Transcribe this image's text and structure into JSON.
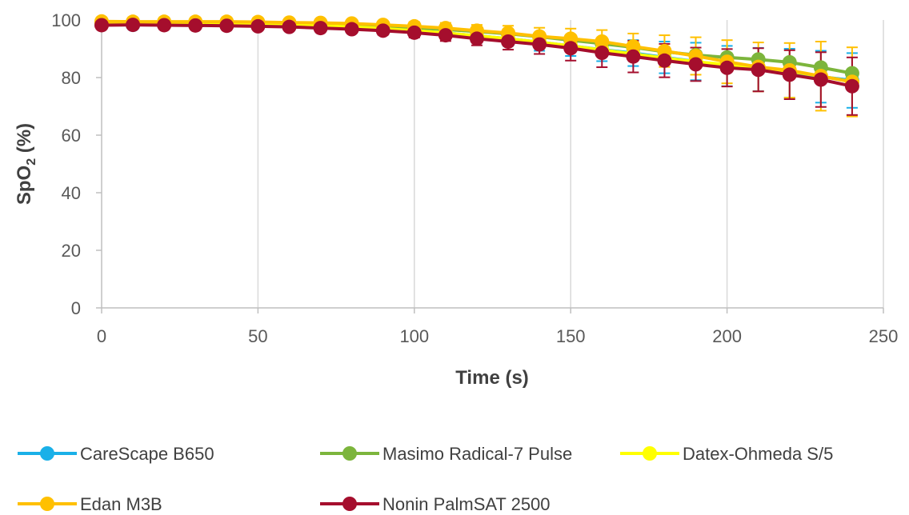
{
  "chart_data": {
    "type": "line",
    "xlabel": "Time (s)",
    "ylabel_main": "SpO",
    "ylabel_sub": "2",
    "ylabel_tail": " (%)",
    "xlim": [
      0,
      250
    ],
    "ylim": [
      0,
      100
    ],
    "x_ticks": [
      0,
      50,
      100,
      150,
      200,
      250
    ],
    "y_ticks": [
      0,
      20,
      40,
      60,
      80,
      100
    ],
    "grid": "vertical",
    "legend_position": "bottom",
    "x": [
      0,
      10,
      20,
      30,
      40,
      50,
      60,
      70,
      80,
      90,
      100,
      110,
      120,
      130,
      140,
      150,
      160,
      170,
      180,
      190,
      200,
      210,
      220,
      230,
      240
    ],
    "series": [
      {
        "name": "CareScape B650",
        "color": "#1ab0e8",
        "values": [
          98.5,
          98.3,
          98.5,
          98.6,
          98.6,
          98.4,
          98.2,
          98.0,
          97.5,
          97.0,
          96.3,
          95.5,
          94.5,
          93.5,
          92.3,
          91.0,
          89.7,
          88.5,
          87.0,
          85.6,
          84.0,
          82.8,
          81.5,
          80.3,
          79.0
        ],
        "error": [
          0.5,
          0.5,
          0.5,
          0.5,
          0.5,
          0.6,
          0.6,
          0.8,
          1.0,
          1.2,
          1.5,
          1.8,
          2.1,
          2.5,
          3.0,
          3.5,
          4.0,
          4.5,
          5.5,
          6.5,
          7.0,
          7.5,
          8.5,
          9.0,
          9.5
        ]
      },
      {
        "name": "Masimo Radical-7 Pulse",
        "color": "#7cb53c",
        "values": [
          99.0,
          99.0,
          99.0,
          99.0,
          99.0,
          98.8,
          98.7,
          98.5,
          98.2,
          97.8,
          97.3,
          96.7,
          96.0,
          95.2,
          94.2,
          93.0,
          91.8,
          90.5,
          89.0,
          87.8,
          87.0,
          86.3,
          85.3,
          83.5,
          81.5
        ]
      },
      {
        "name": "Datex-Ohmeda S/5",
        "color": "#ffff00",
        "values": [
          99.0,
          98.9,
          98.9,
          98.9,
          98.8,
          98.6,
          98.4,
          98.0,
          97.6,
          97.0,
          96.3,
          95.5,
          94.5,
          93.5,
          92.3,
          91.0,
          89.6,
          88.2,
          86.8,
          85.5,
          84.5,
          83.5,
          82.2,
          80.5,
          78.5
        ]
      },
      {
        "name": "Edan M3B",
        "color": "#ffc000",
        "values": [
          99.5,
          99.4,
          99.4,
          99.4,
          99.4,
          99.3,
          99.1,
          99.0,
          98.8,
          98.3,
          97.8,
          97.2,
          96.3,
          95.5,
          94.3,
          93.5,
          92.5,
          90.8,
          89.2,
          87.5,
          85.5,
          83.7,
          82.5,
          80.5,
          78.5
        ],
        "error": [
          0.6,
          0.6,
          0.6,
          0.6,
          0.6,
          0.6,
          0.7,
          0.8,
          1.0,
          1.2,
          1.5,
          1.8,
          2.0,
          2.5,
          3.0,
          3.5,
          4.0,
          4.5,
          5.5,
          6.5,
          7.5,
          8.5,
          9.5,
          12.0,
          12.0
        ]
      },
      {
        "name": "Nonin PalmSAT 2500",
        "color": "#a50e2d",
        "values": [
          98.2,
          98.3,
          98.2,
          98.1,
          98.0,
          97.8,
          97.6,
          97.2,
          96.8,
          96.3,
          95.6,
          94.7,
          93.5,
          92.5,
          91.5,
          90.2,
          88.6,
          87.3,
          85.9,
          84.6,
          83.4,
          82.7,
          81.0,
          79.3,
          77.0
        ],
        "error": [
          0.6,
          0.6,
          0.6,
          0.6,
          0.6,
          0.7,
          0.8,
          1.0,
          1.2,
          1.4,
          1.7,
          2.0,
          2.3,
          2.8,
          3.3,
          4.3,
          5.0,
          5.5,
          5.8,
          5.8,
          6.5,
          7.5,
          8.5,
          9.5,
          10.0
        ]
      }
    ]
  }
}
